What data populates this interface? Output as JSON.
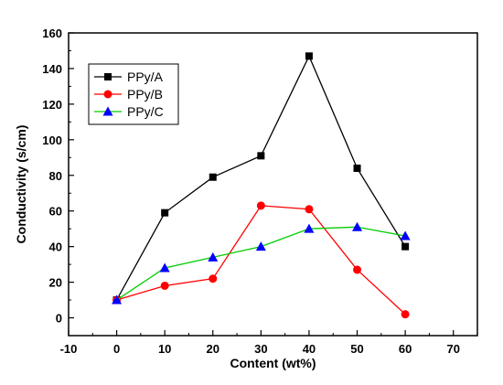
{
  "chart_data": {
    "type": "line",
    "xlabel": "Content (wt%)",
    "ylabel": "Conductivity (s/cm)",
    "xlim": [
      -10,
      75
    ],
    "ylim": [
      -10,
      160
    ],
    "xticks": [
      -10,
      0,
      10,
      20,
      30,
      40,
      50,
      60,
      70
    ],
    "yticks": [
      0,
      20,
      40,
      60,
      80,
      100,
      120,
      140,
      160
    ],
    "legend_position": "top-left",
    "grid": false,
    "x": [
      0,
      10,
      20,
      30,
      40,
      50,
      60
    ],
    "series": [
      {
        "name": "PPy/A",
        "color": "#000000",
        "marker": "square",
        "values": [
          10,
          59,
          79,
          91,
          147,
          84,
          40
        ]
      },
      {
        "name": "PPy/B",
        "color": "#ff0000",
        "marker": "circle",
        "values": [
          10,
          18,
          22,
          63,
          61,
          27,
          2
        ]
      },
      {
        "name": "PPy/C",
        "color": "#00cc00",
        "line_color": "#00cc00",
        "marker_color": "#0000ff",
        "marker": "triangle",
        "values": [
          10,
          28,
          34,
          40,
          50,
          51,
          46
        ]
      }
    ]
  }
}
